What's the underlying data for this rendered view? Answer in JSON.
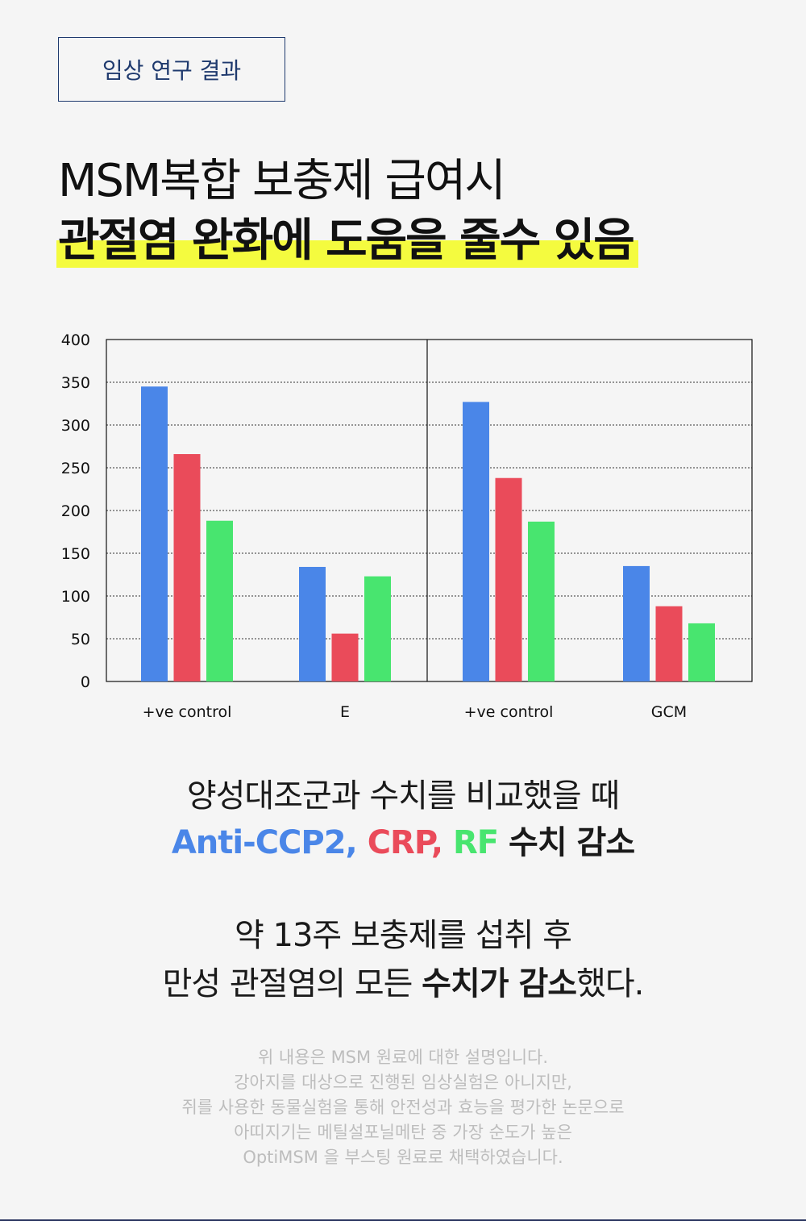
{
  "tag": "임상 연구 결과",
  "headline": {
    "line1": "MSM복합 보충제 급여시",
    "line2": "관절염 완화에 도움을 줄수 있음"
  },
  "colors": {
    "series1": "#4a86e8",
    "series2": "#ea4b5a",
    "series3": "#48e56f",
    "highlight": "#f4fb3f",
    "tag_border": "#1f3a6e"
  },
  "chart_data": {
    "type": "bar",
    "ylim": [
      0,
      400
    ],
    "yticks": [
      0,
      50,
      100,
      150,
      200,
      250,
      300,
      350,
      400
    ],
    "grid": "dotted horizontal",
    "panels": [
      {
        "categories": [
          "+ve control",
          "E"
        ],
        "series": [
          {
            "values": [
              345,
              134
            ]
          },
          {
            "values": [
              266,
              56
            ]
          },
          {
            "values": [
              188,
              123
            ]
          }
        ]
      },
      {
        "categories": [
          "+ve control",
          "GCM"
        ],
        "series": [
          {
            "values": [
              327,
              135
            ]
          },
          {
            "values": [
              238,
              88
            ]
          },
          {
            "values": [
              187,
              68
            ]
          }
        ]
      }
    ]
  },
  "summary": {
    "line1": "양성대조군과 수치를 비교했을 때",
    "anti": "Anti-CCP2,",
    "crp": "CRP,",
    "rf": "RF",
    "tail": "수치 감소"
  },
  "summary2": {
    "line1": "약 13주 보충제를 섭취 후",
    "line2_pre": "만성 관절염의 모든 ",
    "line2_bold": "수치가 감소",
    "line2_post": "했다."
  },
  "footnote": {
    "l1": "위 내용은 MSM 원료에 대한 설명입니다.",
    "l2": "강아지를 대상으로 진행된 임상실험은 아니지만,",
    "l3": "쥐를 사용한 동물실험을 통해 안전성과 효능을 평가한 논문으로",
    "l4": "아띠지기는 메틸설포닐메탄 중 가장 순도가 높은",
    "l5": "OptiMSM 을 부스팅 원료로 채택하였습니다."
  }
}
